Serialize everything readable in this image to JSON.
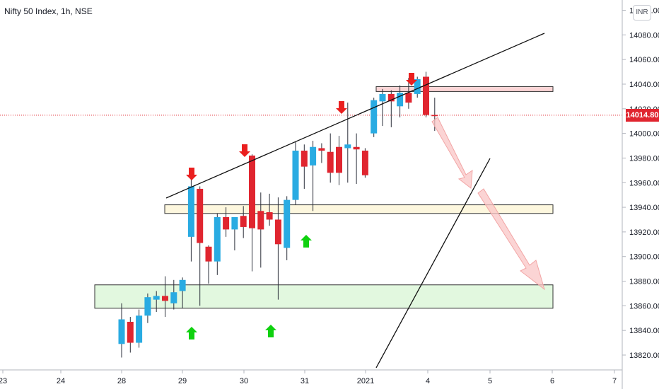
{
  "header": {
    "title": "Nifty 50 Index, 1h, NSE",
    "currency_badge": "INR"
  },
  "colors": {
    "up": "#29abe2",
    "down": "#e0252f",
    "wick": "#2a2e39",
    "resistance_fill": "#fbd5d6",
    "resistance_stroke": "#333333",
    "mid_zone_fill": "#fdf7de",
    "support_zone_fill": "#e2f8df",
    "arrow_red": "#ea1f1f",
    "arrow_green": "#0fd10f",
    "projection_arrow": "#f9c5c5",
    "price_line": "#e0252f"
  },
  "chart_data": {
    "type": "candlestick",
    "last_price": "14014.80",
    "y_axis": {
      "min": 13820,
      "max": 14120,
      "ticks": [
        "14100.00",
        "14080.00",
        "14060.00",
        "14040.00",
        "14020.00",
        "14000.00",
        "13980.00",
        "13960.00",
        "13940.00",
        "13920.00",
        "13900.00",
        "13880.00",
        "13860.00",
        "13840.00",
        "13820.00"
      ],
      "tick_values": [
        14100,
        14080,
        14060,
        14040,
        14020,
        14000,
        13980,
        13960,
        13940,
        13920,
        13900,
        13880,
        13860,
        13840,
        13820
      ]
    },
    "x_axis": {
      "labels": [
        "23",
        "24",
        "28",
        "29",
        "30",
        "31",
        "2021",
        "4",
        "5",
        "6",
        "7"
      ]
    },
    "candles": [
      {
        "o": 13829,
        "h": 13862,
        "l": 13818,
        "c": 13849
      },
      {
        "o": 13847,
        "h": 13851,
        "l": 13822,
        "c": 13830
      },
      {
        "o": 13830,
        "h": 13857,
        "l": 13826,
        "c": 13852
      },
      {
        "o": 13852,
        "h": 13870,
        "l": 13846,
        "c": 13867
      },
      {
        "o": 13865,
        "h": 13872,
        "l": 13855,
        "c": 13868
      },
      {
        "o": 13868,
        "h": 13884,
        "l": 13851,
        "c": 13864
      },
      {
        "o": 13862,
        "h": 13881,
        "l": 13857,
        "c": 13871
      },
      {
        "o": 13872,
        "h": 13883,
        "l": 13858,
        "c": 13881
      },
      {
        "o": 13916,
        "h": 13968,
        "l": 13896,
        "c": 13957
      },
      {
        "o": 13955,
        "h": 13957,
        "l": 13860,
        "c": 13911
      },
      {
        "o": 13908,
        "h": 13909,
        "l": 13878,
        "c": 13896
      },
      {
        "o": 13896,
        "h": 13935,
        "l": 13885,
        "c": 13932
      },
      {
        "o": 13932,
        "h": 13940,
        "l": 13916,
        "c": 13922
      },
      {
        "o": 13922,
        "h": 13931,
        "l": 13905,
        "c": 13932
      },
      {
        "o": 13933,
        "h": 13941,
        "l": 13915,
        "c": 13924
      },
      {
        "o": 13982,
        "h": 13983,
        "l": 13888,
        "c": 13923
      },
      {
        "o": 13937,
        "h": 13952,
        "l": 13891,
        "c": 13922
      },
      {
        "o": 13936,
        "h": 13951,
        "l": 13925,
        "c": 13930
      },
      {
        "o": 13930,
        "h": 13948,
        "l": 13865,
        "c": 13910
      },
      {
        "o": 13907,
        "h": 13949,
        "l": 13897,
        "c": 13946
      },
      {
        "o": 13946,
        "h": 13993,
        "l": 13942,
        "c": 13986
      },
      {
        "o": 13986,
        "h": 13991,
        "l": 13955,
        "c": 13973
      },
      {
        "o": 13974,
        "h": 13994,
        "l": 13937,
        "c": 13989
      },
      {
        "o": 13988,
        "h": 13992,
        "l": 13976,
        "c": 13986
      },
      {
        "o": 13985,
        "h": 14000,
        "l": 13960,
        "c": 13968
      },
      {
        "o": 13989,
        "h": 13998,
        "l": 13958,
        "c": 13968
      },
      {
        "o": 13988,
        "h": 14025,
        "l": 13960,
        "c": 13991
      },
      {
        "o": 13989,
        "h": 14000,
        "l": 13959,
        "c": 13987
      },
      {
        "o": 13986,
        "h": 13988,
        "l": 13964,
        "c": 13966
      },
      {
        "o": 14000,
        "h": 14029,
        "l": 13997,
        "c": 14027
      },
      {
        "o": 14026,
        "h": 14036,
        "l": 14006,
        "c": 14032
      },
      {
        "o": 14032,
        "h": 14035,
        "l": 14005,
        "c": 14026
      },
      {
        "o": 14022,
        "h": 14039,
        "l": 14013,
        "c": 14033
      },
      {
        "o": 14033,
        "h": 14045,
        "l": 14020,
        "c": 14025
      },
      {
        "o": 14032,
        "h": 14046,
        "l": 14029,
        "c": 14044
      },
      {
        "o": 14046,
        "h": 14050,
        "l": 14013,
        "c": 14015
      },
      {
        "o": 14015,
        "h": 14029,
        "l": 14002,
        "c": 14014
      }
    ],
    "zones": [
      {
        "name": "resistance",
        "from": 14034,
        "to": 14038
      },
      {
        "name": "mid",
        "from": 13935,
        "to": 13942
      },
      {
        "name": "support",
        "from": 13858,
        "to": 13877
      }
    ]
  }
}
